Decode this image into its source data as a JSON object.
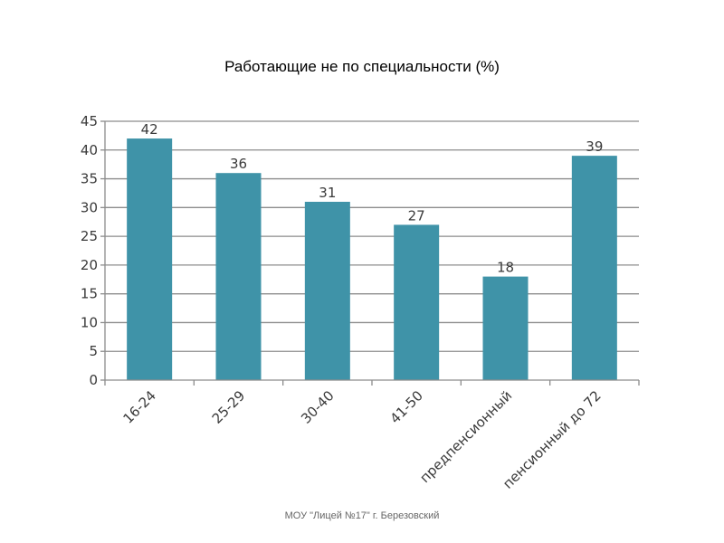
{
  "chart_title": "Работающие не по специальности (%)",
  "footer": "МОУ \"Лицей №17\" г. Березовский",
  "colors": {
    "bar": "#3f93a8",
    "grid": "#8c8c8c",
    "axis": "#8c8c8c",
    "text": "#3a3a3a"
  },
  "chart_data": {
    "type": "bar",
    "title": "Работающие не по специальности (%)",
    "xlabel": "",
    "ylabel": "",
    "categories": [
      "16-24",
      "25-29",
      "30-40",
      "41-50",
      "предпенсионный",
      "пенсионный до 72"
    ],
    "values": [
      42,
      36,
      31,
      27,
      18,
      39
    ],
    "ylim": [
      0,
      45
    ],
    "yticks": [
      0,
      5,
      10,
      15,
      20,
      25,
      30,
      35,
      40,
      45
    ],
    "grid": true,
    "legend": "none",
    "data_labels": true
  }
}
